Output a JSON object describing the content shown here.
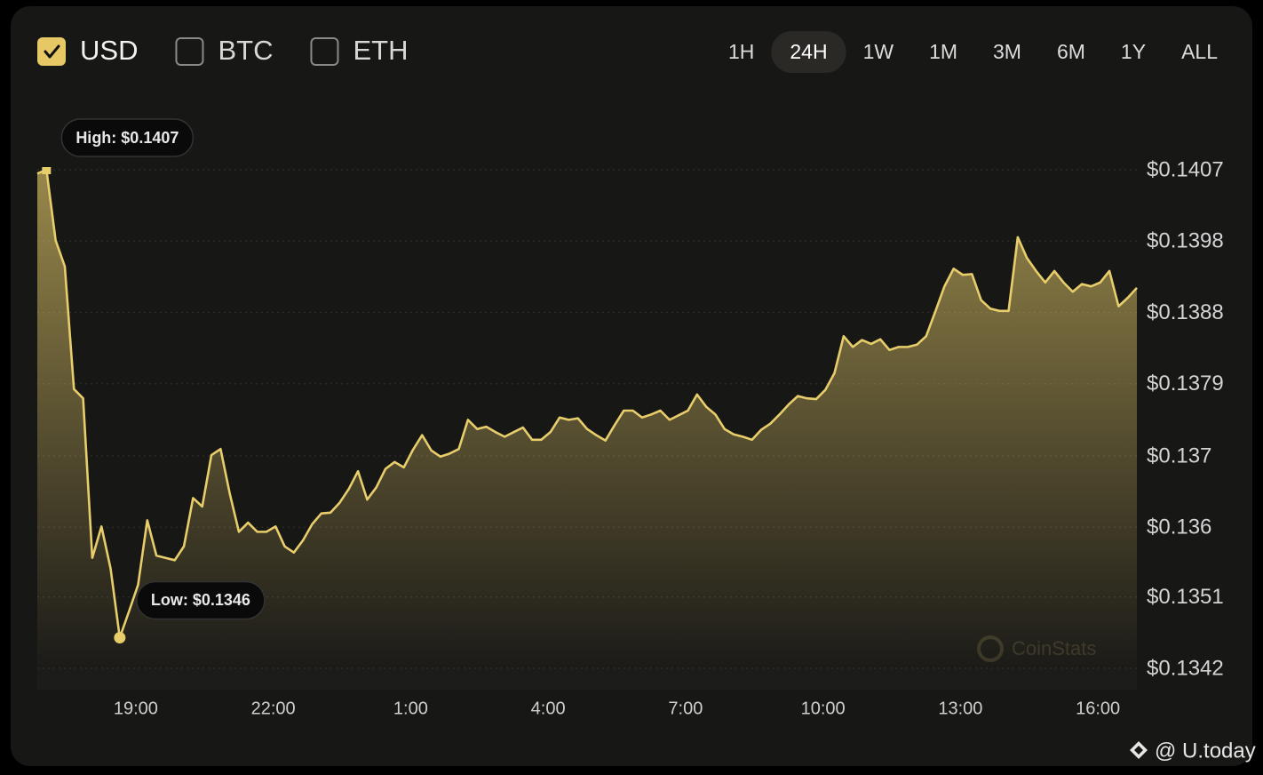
{
  "chart_data": {
    "type": "line",
    "toggles": [
      "USD",
      "BTC",
      "ETH"
    ],
    "toggles_checked": [
      true,
      false,
      false
    ],
    "ranges": [
      "1H",
      "24H",
      "1W",
      "1M",
      "3M",
      "6M",
      "1Y",
      "ALL"
    ],
    "selected_range": "24H",
    "high_label": "High: $0.1407",
    "low_label": "Low: $0.1346",
    "watermark": "CoinStats",
    "credit": "@ U.today",
    "x": [
      16.85,
      17.05,
      17.25,
      17.45,
      17.65,
      17.85,
      18.05,
      18.25,
      18.45,
      18.65,
      18.85,
      19.05,
      19.25,
      19.45,
      19.65,
      19.85,
      20.05,
      20.25,
      20.45,
      20.65,
      20.85,
      21.05,
      21.25,
      21.45,
      21.65,
      21.85,
      22.05,
      22.25,
      22.45,
      22.65,
      22.85,
      23.05,
      23.25,
      23.45,
      23.65,
      23.85,
      24.05,
      24.25,
      24.45,
      24.65,
      24.85,
      25.05,
      25.25,
      25.45,
      25.65,
      25.85,
      26.05,
      26.25,
      26.45,
      26.65,
      26.85,
      27.05,
      27.25,
      27.45,
      27.65,
      27.85,
      28.05,
      28.25,
      28.45,
      28.65,
      28.85,
      29.05,
      29.25,
      29.45,
      29.65,
      29.85,
      30.05,
      30.25,
      30.45,
      30.65,
      30.85,
      31.05,
      31.25,
      31.45,
      31.65,
      31.85,
      32.05,
      32.25,
      32.45,
      32.65,
      32.85,
      33.05,
      33.25,
      33.45,
      33.65,
      33.85,
      34.05,
      34.25,
      34.45,
      34.65,
      34.85,
      35.05,
      35.25,
      35.45,
      35.65,
      35.85,
      36.05,
      36.25,
      36.45,
      36.65,
      36.85,
      37.05,
      37.25,
      37.45,
      37.65,
      37.85,
      38.05,
      38.25,
      38.45,
      38.65,
      38.85,
      39.05,
      39.25,
      39.45,
      39.65,
      39.85,
      40.05,
      40.25,
      40.45,
      40.65,
      40.85
    ],
    "series": [
      {
        "color": "#e8cd6b",
        "values": [
          0.14065,
          0.1407,
          0.13978,
          0.13944,
          0.13784,
          0.13772,
          0.13564,
          0.13605,
          0.1355,
          0.1346,
          0.13494,
          0.13529,
          0.13613,
          0.13567,
          0.13564,
          0.13561,
          0.13579,
          0.13642,
          0.13631,
          0.13698,
          0.13706,
          0.13648,
          0.13598,
          0.1361,
          0.13598,
          0.13598,
          0.13605,
          0.13579,
          0.13571,
          0.13587,
          0.13608,
          0.13622,
          0.13623,
          0.13636,
          0.13654,
          0.13677,
          0.1364,
          0.13656,
          0.1368,
          0.13689,
          0.13682,
          0.13705,
          0.13724,
          0.13704,
          0.13696,
          0.137,
          0.13706,
          0.13744,
          0.13732,
          0.13735,
          0.13728,
          0.13722,
          0.13728,
          0.13734,
          0.13718,
          0.13718,
          0.13728,
          0.13747,
          0.13744,
          0.13746,
          0.13732,
          0.13724,
          0.13717,
          0.13737,
          0.13756,
          0.13756,
          0.13747,
          0.13751,
          0.13756,
          0.13744,
          0.1375,
          0.13756,
          0.13777,
          0.13761,
          0.13751,
          0.13732,
          0.13725,
          0.13722,
          0.13718,
          0.13731,
          0.13739,
          0.13751,
          0.13764,
          0.13775,
          0.13772,
          0.13771,
          0.13783,
          0.13805,
          0.13853,
          0.13839,
          0.13848,
          0.13843,
          0.13849,
          0.13835,
          0.13839,
          0.13839,
          0.13842,
          0.13853,
          0.13885,
          0.13918,
          0.13941,
          0.13933,
          0.13934,
          0.139,
          0.13889,
          0.13886,
          0.13886,
          0.13982,
          0.13955,
          0.13938,
          0.13923,
          0.13938,
          0.13923,
          0.13911,
          0.13921,
          0.13918,
          0.13923,
          0.13938,
          0.13892,
          0.13903,
          0.13916
        ]
      }
    ],
    "xlim": [
      16.85,
      40.85
    ],
    "xticks": [
      {
        "value": 19,
        "label": "19:00"
      },
      {
        "value": 22,
        "label": "22:00"
      },
      {
        "value": 25,
        "label": "1:00"
      },
      {
        "value": 28,
        "label": "4:00"
      },
      {
        "value": 31,
        "label": "7:00"
      },
      {
        "value": 34,
        "label": "10:00"
      },
      {
        "value": 37,
        "label": "13:00"
      },
      {
        "value": 40,
        "label": "16:00"
      }
    ],
    "ylim": [
      0.1342,
      0.1407
    ],
    "yticks": [
      {
        "value": 0.1342,
        "label": "$0.1342"
      },
      {
        "value": 0.13513,
        "label": "$0.1351"
      },
      {
        "value": 0.13604,
        "label": "$0.136"
      },
      {
        "value": 0.13697,
        "label": "$0.137"
      },
      {
        "value": 0.13791,
        "label": "$0.1379"
      },
      {
        "value": 0.13884,
        "label": "$0.1388"
      },
      {
        "value": 0.13977,
        "label": "$0.1398"
      },
      {
        "value": 0.1407,
        "label": "$0.1407"
      }
    ],
    "grid": true
  }
}
